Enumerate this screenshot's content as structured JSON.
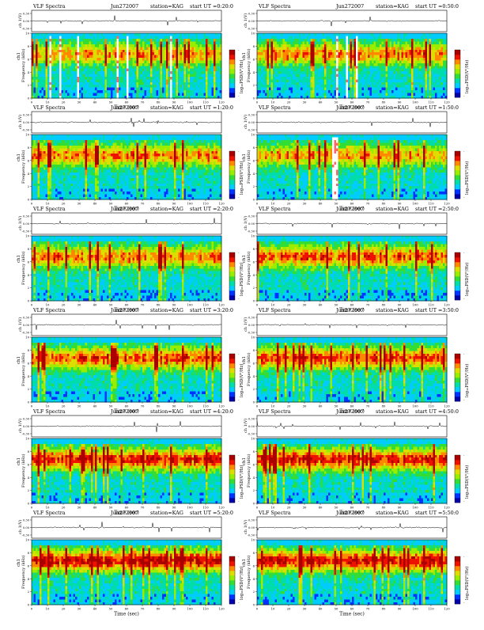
{
  "page": {
    "panel_title": "VLF Spectra",
    "date": "Jun272007",
    "station": "station=KAG",
    "start_prefix": "start UT ="
  },
  "axes": {
    "top_ylabel": "ch 1(V)",
    "top_ticks": [
      "0.30",
      "0.00",
      "-0.30"
    ],
    "freq_ylabel": "Frequency (kHz)",
    "ch_label": "ch1",
    "freq_ticks": [
      0,
      2,
      4,
      6,
      8,
      10
    ],
    "xlabel": "Time (sec)",
    "x_ticks": [
      0,
      10,
      20,
      30,
      40,
      50,
      60,
      70,
      80,
      90,
      100,
      110,
      120
    ],
    "colorbar_label": "log₁₀PSD(V²/Hz)",
    "colorbar_low": "-",
    "colorbar_high": "-"
  },
  "colors": {
    "colormap": [
      "#0000aa",
      "#0033ff",
      "#00ccff",
      "#00ddaa",
      "#33dd33",
      "#99ee00",
      "#dddd00",
      "#ff8800",
      "#ee1100",
      "#aa0000"
    ],
    "trace": "#000000"
  },
  "chart_data": [
    {
      "type": "heatmap",
      "start_ut": "0:20:0",
      "xlim": [
        0,
        120
      ],
      "ylim": [
        0,
        10
      ],
      "activity": 0.45,
      "white_gaps_s": [
        11,
        17,
        29,
        54,
        60,
        88
      ]
    },
    {
      "type": "heatmap",
      "start_ut": "0:50:0",
      "xlim": [
        0,
        120
      ],
      "ylim": [
        0,
        10
      ],
      "activity": 0.55,
      "white_gaps_s": [
        50,
        56,
        63
      ]
    },
    {
      "type": "heatmap",
      "start_ut": "1:20:0",
      "xlim": [
        0,
        120
      ],
      "ylim": [
        0,
        10
      ],
      "activity": 0.55,
      "white_gaps_s": []
    },
    {
      "type": "heatmap",
      "start_ut": "1:50:0",
      "xlim": [
        0,
        120
      ],
      "ylim": [
        0,
        10
      ],
      "activity": 0.45,
      "white_gaps_s": [
        47,
        48,
        49,
        50
      ]
    },
    {
      "type": "heatmap",
      "start_ut": "2:20:0",
      "xlim": [
        0,
        120
      ],
      "ylim": [
        0,
        10
      ],
      "activity": 0.6,
      "white_gaps_s": []
    },
    {
      "type": "heatmap",
      "start_ut": "2:50:0",
      "xlim": [
        0,
        120
      ],
      "ylim": [
        0,
        10
      ],
      "activity": 0.65,
      "white_gaps_s": []
    },
    {
      "type": "heatmap",
      "start_ut": "3:20:0",
      "xlim": [
        0,
        120
      ],
      "ylim": [
        0,
        10
      ],
      "activity": 0.7,
      "white_gaps_s": []
    },
    {
      "type": "heatmap",
      "start_ut": "3:50:0",
      "xlim": [
        0,
        120
      ],
      "ylim": [
        0,
        10
      ],
      "activity": 0.7,
      "white_gaps_s": []
    },
    {
      "type": "heatmap",
      "start_ut": "4:20:0",
      "xlim": [
        0,
        120
      ],
      "ylim": [
        0,
        10
      ],
      "activity": 0.8,
      "white_gaps_s": []
    },
    {
      "type": "heatmap",
      "start_ut": "4:50:0",
      "xlim": [
        0,
        120
      ],
      "ylim": [
        0,
        10
      ],
      "activity": 0.85,
      "white_gaps_s": []
    },
    {
      "type": "heatmap",
      "start_ut": "5:20:0",
      "xlim": [
        0,
        120
      ],
      "ylim": [
        0,
        10
      ],
      "activity": 0.9,
      "white_gaps_s": []
    },
    {
      "type": "heatmap",
      "start_ut": "5:50:0",
      "xlim": [
        0,
        120
      ],
      "ylim": [
        0,
        10
      ],
      "activity": 0.92,
      "white_gaps_s": []
    }
  ]
}
